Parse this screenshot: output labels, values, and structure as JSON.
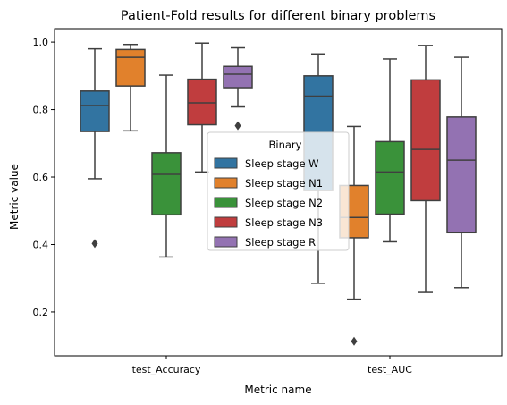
{
  "chart_data": {
    "type": "box",
    "title": "Patient-Fold results for different binary problems",
    "xlabel": "Metric name",
    "ylabel": "Metric value",
    "ylim": [
      0.07,
      1.04
    ],
    "yticks": [
      0.2,
      0.4,
      0.6,
      0.8,
      1.0
    ],
    "ytick_labels": [
      "0.2",
      "0.4",
      "0.6",
      "0.8",
      "1.0"
    ],
    "categories": [
      "test_Accuracy",
      "test_AUC"
    ],
    "legend": {
      "title": "Binary",
      "placement": "center"
    },
    "series": [
      {
        "name": "Sleep stage W",
        "color": "#3274a1",
        "boxes": [
          {
            "whisker_low": 0.595,
            "q1": 0.735,
            "median": 0.812,
            "q3": 0.855,
            "whisker_high": 0.98,
            "outliers": [
              0.403
            ]
          },
          {
            "whisker_low": 0.285,
            "q1": 0.56,
            "median": 0.84,
            "q3": 0.9,
            "whisker_high": 0.965,
            "outliers": []
          }
        ]
      },
      {
        "name": "Sleep stage N1",
        "color": "#e1812c",
        "boxes": [
          {
            "whisker_low": 0.737,
            "q1": 0.87,
            "median": 0.955,
            "q3": 0.978,
            "whisker_high": 0.993,
            "outliers": []
          },
          {
            "whisker_low": 0.238,
            "q1": 0.42,
            "median": 0.48,
            "q3": 0.575,
            "whisker_high": 0.75,
            "outliers": [
              0.113
            ]
          }
        ]
      },
      {
        "name": "Sleep stage N2",
        "color": "#3a923a",
        "boxes": [
          {
            "whisker_low": 0.363,
            "q1": 0.488,
            "median": 0.608,
            "q3": 0.672,
            "whisker_high": 0.902,
            "outliers": []
          },
          {
            "whisker_low": 0.408,
            "q1": 0.49,
            "median": 0.615,
            "q3": 0.705,
            "whisker_high": 0.95,
            "outliers": []
          }
        ]
      },
      {
        "name": "Sleep stage N3",
        "color": "#c03d3e",
        "boxes": [
          {
            "whisker_low": 0.615,
            "q1": 0.755,
            "median": 0.82,
            "q3": 0.89,
            "whisker_high": 0.997,
            "outliers": []
          },
          {
            "whisker_low": 0.258,
            "q1": 0.53,
            "median": 0.682,
            "q3": 0.888,
            "whisker_high": 0.99,
            "outliers": []
          }
        ]
      },
      {
        "name": "Sleep stage R",
        "color": "#9372b2",
        "boxes": [
          {
            "whisker_low": 0.808,
            "q1": 0.865,
            "median": 0.905,
            "q3": 0.928,
            "whisker_high": 0.983,
            "outliers": [
              0.752
            ]
          },
          {
            "whisker_low": 0.272,
            "q1": 0.435,
            "median": 0.65,
            "q3": 0.778,
            "whisker_high": 0.955,
            "outliers": []
          }
        ]
      }
    ]
  }
}
